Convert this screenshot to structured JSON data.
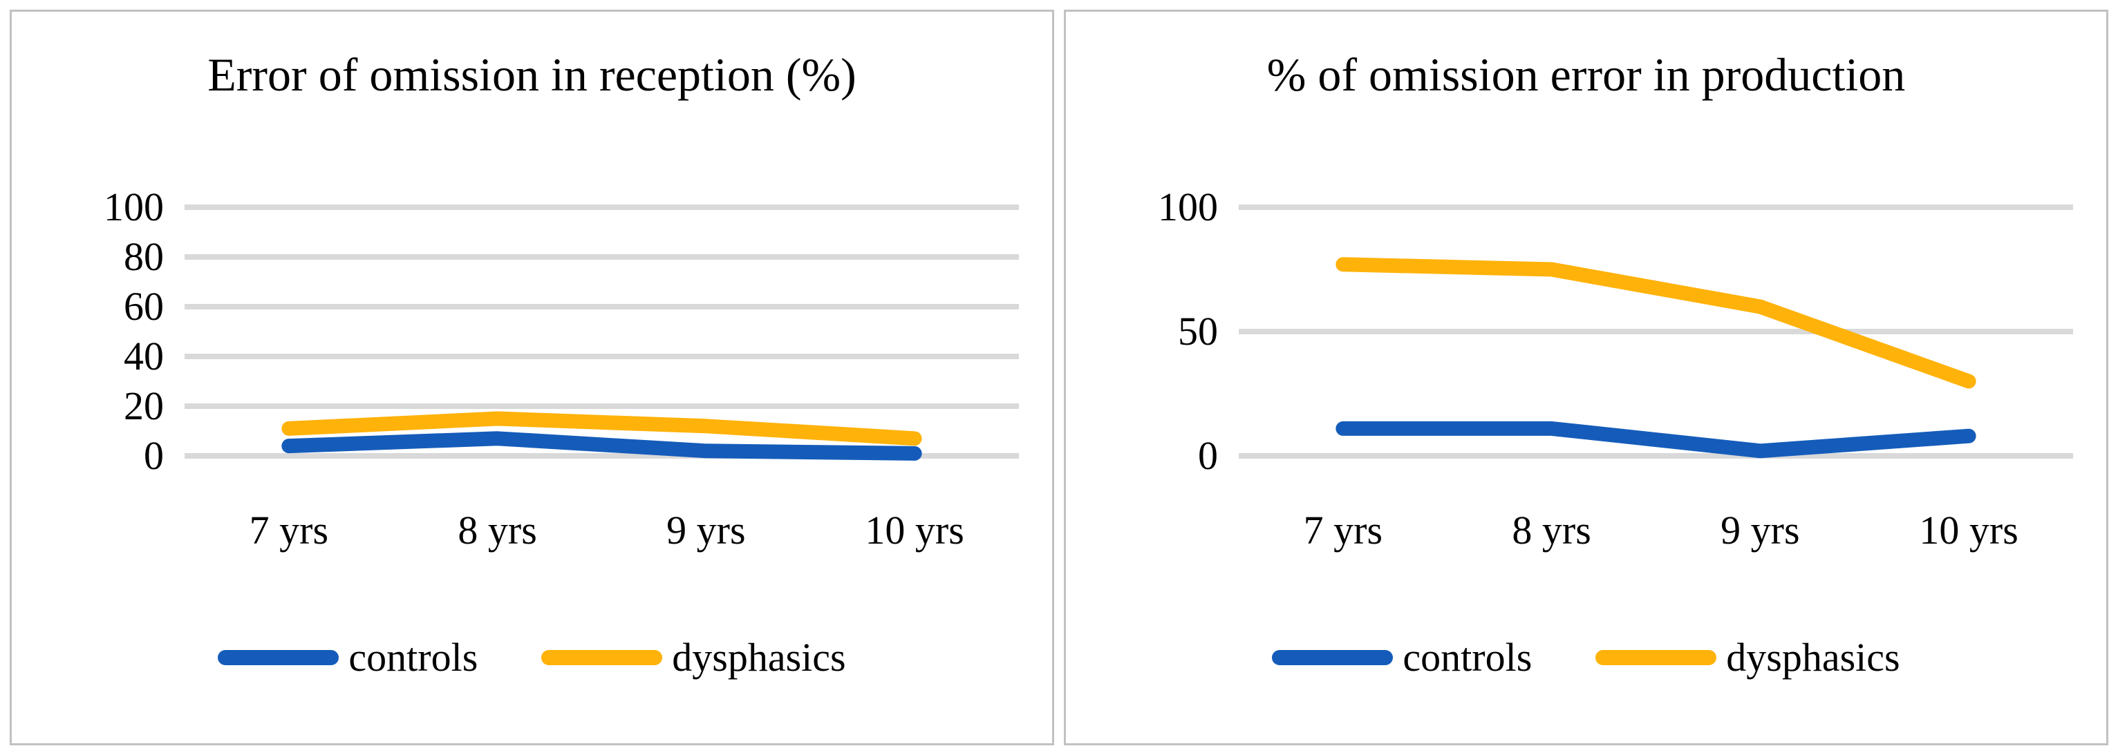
{
  "figure": {
    "background": "#FFFFFF",
    "panel_border_color": "#C1C1C1",
    "grid_color": "#D9D9D9"
  },
  "chart_data": [
    {
      "type": "line",
      "title": "Error of omission in reception (%)",
      "categories": [
        "7 yrs",
        "8 yrs",
        "9 yrs",
        "10 yrs"
      ],
      "series": [
        {
          "name": "controls",
          "color": "#155CBA",
          "values": [
            4,
            7,
            2,
            1
          ]
        },
        {
          "name": "dysphasics",
          "color": "#FFB20A",
          "values": [
            11,
            15,
            12,
            7
          ]
        }
      ],
      "ylim": [
        0,
        100
      ],
      "yticks": [
        0,
        20,
        40,
        60,
        80,
        100
      ],
      "grid": true,
      "legend_position": "bottom",
      "line_style": "thick-rounded"
    },
    {
      "type": "line",
      "title": "% of omission error in production",
      "categories": [
        "7 yrs",
        "8 yrs",
        "9 yrs",
        "10 yrs"
      ],
      "series": [
        {
          "name": "controls",
          "color": "#155CBA",
          "values": [
            11,
            11,
            2,
            8
          ]
        },
        {
          "name": "dysphasics",
          "color": "#FFB20A",
          "values": [
            77,
            75,
            60,
            30
          ]
        }
      ],
      "ylim": [
        0,
        100
      ],
      "yticks": [
        0,
        50,
        100
      ],
      "grid": true,
      "legend_position": "bottom",
      "line_style": "thick-rounded"
    }
  ]
}
